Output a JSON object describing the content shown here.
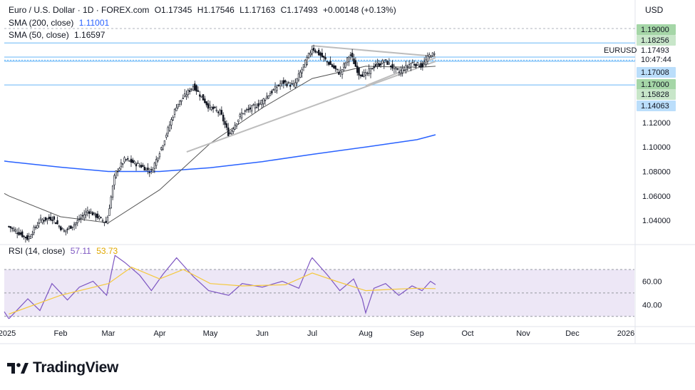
{
  "header": {
    "symbol_line": "Euro / U.S. Dollar · 1D · FOREX.com",
    "open": "O1.17345",
    "high": "H1.17546",
    "low": "L1.17163",
    "close": "C1.17493",
    "change": "+0.00148 (+0.13%)",
    "sma200_label": "SMA (200, close)",
    "sma200_value": "1.11001",
    "sma50_label": "SMA (50, close)",
    "sma50_value": "1.16597",
    "rsi_label": "RSI (14, close)",
    "rsi_value": "57.11",
    "rsi_ma_value": "53.73"
  },
  "currency": "USD",
  "brand": "TradingView",
  "price_badges": {
    "symbol_tag": "EURUSD",
    "last_price": "1.17493",
    "countdown": "10:47:44",
    "levels": [
      {
        "label": "1.19000",
        "value": 1.19,
        "bg": "#a5d6a7"
      },
      {
        "label": "1.18256",
        "value": 1.18256,
        "bg": "#c8e6c9"
      },
      {
        "label": "1.17008",
        "value": 1.17008,
        "bg": "#bbdefb"
      },
      {
        "label": "1.17000",
        "value": 1.17,
        "bg": "#a5d6a7"
      },
      {
        "label": "1.15828",
        "value": 1.15828,
        "bg": "#c8e6c9"
      },
      {
        "label": "1.14063",
        "value": 1.14063,
        "bg": "#bbdefb"
      }
    ]
  },
  "colors": {
    "up": "#131722",
    "down": "#131722",
    "sma200": "#2962ff",
    "sma50": "#555555",
    "rsi": "#7e57c2",
    "rsi_ma": "#f5c93e",
    "rsi_band": "#ede7f6"
  },
  "chart_data": {
    "type": "candlestick",
    "x_axis_labels": [
      "2025",
      "Feb",
      "Mar",
      "Apr",
      "May",
      "Jun",
      "Jul",
      "Aug",
      "Sep",
      "Oct",
      "Nov",
      "Dec",
      "2026"
    ],
    "price_axis_ticks": [
      "1.04000",
      "1.06000",
      "1.08000",
      "1.10000",
      "1.12000"
    ],
    "price_ylim": [
      1.022,
      1.198
    ],
    "rsi_axis_ticks": [
      "40.00",
      "60.00"
    ],
    "rsi_ylim": [
      25,
      84
    ],
    "rsi_band": [
      30,
      70
    ],
    "horizontal_levels": [
      1.185,
      1.1735,
      1.1701,
      1.1507
    ],
    "trendlines": [
      {
        "from": [
          "Apr 17",
          1.096
        ],
        "to": [
          "Sep 12",
          1.17
        ]
      },
      {
        "from": [
          "Jul 1",
          1.1828
        ],
        "to": [
          "Sep 12",
          1.174
        ]
      },
      {
        "from": [
          "Aug 1",
          1.15
        ],
        "to": [
          "Sep 12",
          1.173
        ]
      }
    ],
    "series": [
      {
        "name": "Price (daily close path)",
        "points": [
          [
            "Jan 2",
            1.035
          ],
          [
            "Jan 13",
            1.025
          ],
          [
            "Jan 20",
            1.04
          ],
          [
            "Jan 27",
            1.042
          ],
          [
            "Feb 3",
            1.031
          ],
          [
            "Feb 10",
            1.038
          ],
          [
            "Feb 17",
            1.048
          ],
          [
            "Feb 28",
            1.038
          ],
          [
            "Mar 5",
            1.078
          ],
          [
            "Mar 11",
            1.09
          ],
          [
            "Mar 20",
            1.085
          ],
          [
            "Mar 27",
            1.08
          ],
          [
            "Apr 3",
            1.103
          ],
          [
            "Apr 11",
            1.134
          ],
          [
            "Apr 21",
            1.15
          ],
          [
            "Apr 30",
            1.133
          ],
          [
            "May 7",
            1.128
          ],
          [
            "May 12",
            1.11
          ],
          [
            "May 20",
            1.128
          ],
          [
            "May 30",
            1.135
          ],
          [
            "Jun 5",
            1.143
          ],
          [
            "Jun 13",
            1.153
          ],
          [
            "Jun 20",
            1.15
          ],
          [
            "Jun 30",
            1.178
          ],
          [
            "Jul 1",
            1.181
          ],
          [
            "Jul 8",
            1.172
          ],
          [
            "Jul 17",
            1.16
          ],
          [
            "Jul 23",
            1.176
          ],
          [
            "Jul 28",
            1.16
          ],
          [
            "Aug 1",
            1.159
          ],
          [
            "Aug 6",
            1.166
          ],
          [
            "Aug 13",
            1.17
          ],
          [
            "Aug 21",
            1.161
          ],
          [
            "Aug 29",
            1.169
          ],
          [
            "Sep 4",
            1.166
          ],
          [
            "Sep 9",
            1.176
          ],
          [
            "Sep 12",
            1.1749
          ]
        ]
      },
      {
        "name": "SMA (200, close)",
        "points": [
          [
            "Jan 2",
            1.088
          ],
          [
            "Feb 1",
            1.0835
          ],
          [
            "Mar 1",
            1.08
          ],
          [
            "Apr 1",
            1.08
          ],
          [
            "May 1",
            1.083
          ],
          [
            "Jun 1",
            1.088
          ],
          [
            "Jul 1",
            1.094
          ],
          [
            "Aug 1",
            1.1
          ],
          [
            "Sep 1",
            1.106
          ],
          [
            "Sep 12",
            1.11
          ]
        ]
      },
      {
        "name": "SMA (50, close)",
        "points": [
          [
            "Jan 2",
            1.06
          ],
          [
            "Feb 1",
            1.043
          ],
          [
            "Mar 1",
            1.038
          ],
          [
            "Apr 1",
            1.065
          ],
          [
            "May 1",
            1.103
          ],
          [
            "Jun 1",
            1.132
          ],
          [
            "Jul 1",
            1.156
          ],
          [
            "Aug 1",
            1.166
          ],
          [
            "Sep 1",
            1.165
          ],
          [
            "Sep 12",
            1.166
          ]
        ]
      },
      {
        "name": "RSI (14, close)",
        "points": [
          [
            "Jan 2",
            28
          ],
          [
            "Jan 13",
            45
          ],
          [
            "Jan 20",
            35
          ],
          [
            "Jan 27",
            58
          ],
          [
            "Feb 5",
            44
          ],
          [
            "Feb 12",
            55
          ],
          [
            "Feb 20",
            60
          ],
          [
            "Feb 28",
            48
          ],
          [
            "Mar 5",
            82
          ],
          [
            "Mar 11",
            76
          ],
          [
            "Mar 20",
            65
          ],
          [
            "Mar 27",
            52
          ],
          [
            "Apr 3",
            66
          ],
          [
            "Apr 11",
            80
          ],
          [
            "Apr 21",
            64
          ],
          [
            "Apr 30",
            52
          ],
          [
            "May 12",
            48
          ],
          [
            "May 20",
            58
          ],
          [
            "Jun 1",
            55
          ],
          [
            "Jun 13",
            60
          ],
          [
            "Jun 23",
            54
          ],
          [
            "Jun 30",
            78
          ],
          [
            "Jul 1",
            80
          ],
          [
            "Jul 10",
            65
          ],
          [
            "Jul 17",
            52
          ],
          [
            "Jul 25",
            62
          ],
          [
            "Jul 30",
            45
          ],
          [
            "Aug 1",
            33
          ],
          [
            "Aug 6",
            54
          ],
          [
            "Aug 13",
            58
          ],
          [
            "Aug 21",
            48
          ],
          [
            "Aug 29",
            56
          ],
          [
            "Sep 4",
            52
          ],
          [
            "Sep 9",
            60
          ],
          [
            "Sep 12",
            57.11
          ]
        ]
      },
      {
        "name": "RSI MA",
        "points": [
          [
            "Jan 2",
            32
          ],
          [
            "Feb 1",
            48
          ],
          [
            "Mar 1",
            58
          ],
          [
            "Mar 15",
            72
          ],
          [
            "Apr 1",
            62
          ],
          [
            "Apr 15",
            70
          ],
          [
            "May 1",
            58
          ],
          [
            "May 20",
            56
          ],
          [
            "Jun 15",
            57
          ],
          [
            "Jul 1",
            67
          ],
          [
            "Jul 15",
            60
          ],
          [
            "Aug 1",
            52
          ],
          [
            "Aug 15",
            53
          ],
          [
            "Sep 1",
            54
          ],
          [
            "Sep 12",
            53.73
          ]
        ]
      }
    ]
  }
}
